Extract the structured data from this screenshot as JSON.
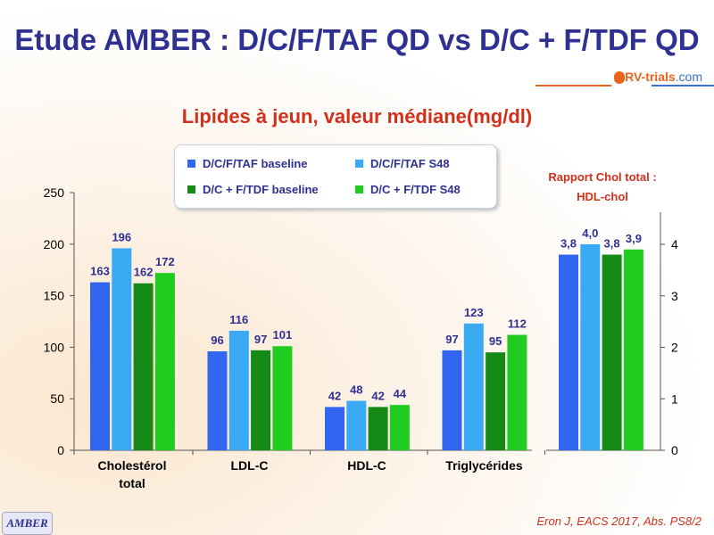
{
  "title": "Etude AMBER : D/C/F/TAF QD vs D/C + F/TDF QD",
  "logo": {
    "text": "ARV-trials",
    "suffix": ".com"
  },
  "footer": {
    "badge": "AMBER",
    "citation": "Eron J, EACS 2017, Abs. PS8/2"
  },
  "colors": [
    "#3366f0",
    "#3aaaf5",
    "#168a16",
    "#1fcc1f"
  ],
  "chart_data": [
    {
      "type": "bar",
      "title": "Lipides à jeun, valeur médiane(mg/dl)",
      "categories": [
        "Cholestérol total",
        "LDL-C",
        "HDL-C",
        "Triglycérides"
      ],
      "category_lines": [
        [
          "Cholestérol",
          "total"
        ],
        [
          "LDL-C"
        ],
        [
          "HDL-C"
        ],
        [
          "Triglycérides"
        ]
      ],
      "series": [
        {
          "name": "D/C/F/TAF baseline",
          "values": [
            163,
            96,
            42,
            97
          ]
        },
        {
          "name": "D/C/F/TAF S48",
          "values": [
            196,
            116,
            48,
            123
          ]
        },
        {
          "name": "D/C + F/TDF baseline",
          "values": [
            162,
            97,
            42,
            95
          ]
        },
        {
          "name": "D/C + F/TDF S48",
          "values": [
            172,
            101,
            44,
            112
          ]
        }
      ],
      "ylim": [
        0,
        250
      ],
      "yticks": [
        0,
        50,
        100,
        150,
        200,
        250
      ],
      "legend": "top-center"
    },
    {
      "type": "bar",
      "title": "Rapport Chol total : HDL-chol",
      "title_lines": [
        "Rapport Chol total :",
        "HDL-chol"
      ],
      "series": [
        {
          "name": "D/C/F/TAF baseline",
          "values": [
            3.8
          ],
          "label": "3,8"
        },
        {
          "name": "D/C/F/TAF S48",
          "values": [
            4.0
          ],
          "label": "4,0"
        },
        {
          "name": "D/C + F/TDF baseline",
          "values": [
            3.8
          ],
          "label": "3,8"
        },
        {
          "name": "D/C + F/TDF S48",
          "values": [
            3.9
          ],
          "label": "3,9"
        }
      ],
      "ylim": [
        0,
        4.6
      ],
      "yticks": [
        0,
        1,
        2,
        3,
        4
      ],
      "axis": "right"
    }
  ]
}
